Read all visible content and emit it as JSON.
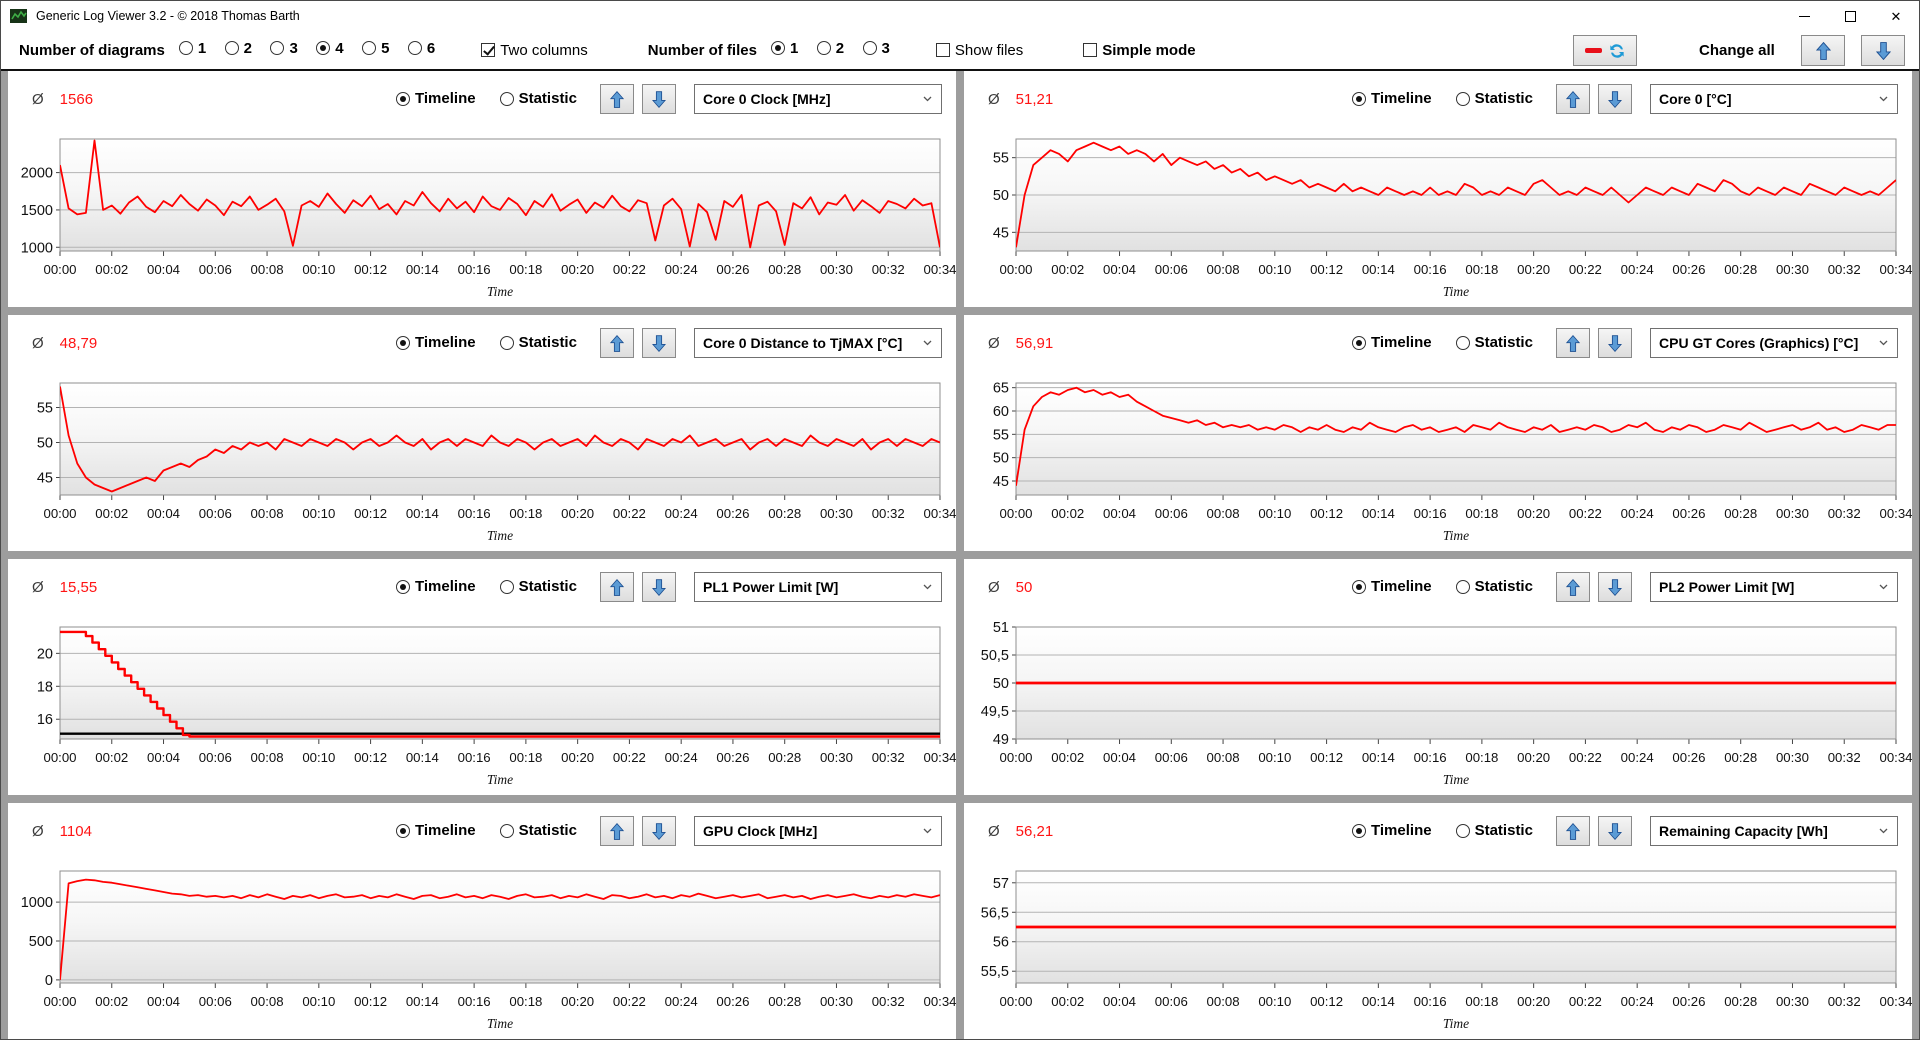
{
  "window": {
    "title": "Generic Log Viewer 3.2 - © 2018 Thomas Barth",
    "close_glyph": "✕"
  },
  "toolbar": {
    "diagrams_label": "Number of diagrams",
    "diagram_options": [
      "1",
      "2",
      "3",
      "4",
      "5",
      "6"
    ],
    "diagrams_selected": "4",
    "two_columns_label": "Two columns",
    "two_columns_checked": true,
    "files_label": "Number of files",
    "file_options": [
      "1",
      "2",
      "3"
    ],
    "files_selected": "1",
    "show_files_label": "Show files",
    "show_files_checked": false,
    "simple_mode_label": "Simple mode",
    "simple_mode_checked": false,
    "change_all_label": "Change all",
    "icons": {
      "redraw_button": [
        "minus-icon",
        "refresh-icon"
      ],
      "change_all": [
        "arrow-up-icon",
        "arrow-down-icon"
      ]
    }
  },
  "panel_common": {
    "avg_symbol": "Ø",
    "timeline_label": "Timeline",
    "statistic_label": "Statistic",
    "time_axis_label": "Time",
    "x_ticks": [
      "00:00",
      "00:02",
      "00:04",
      "00:06",
      "00:08",
      "00:10",
      "00:12",
      "00:14",
      "00:16",
      "00:18",
      "00:20",
      "00:22",
      "00:24",
      "00:26",
      "00:28",
      "00:30",
      "00:32",
      "00:34"
    ],
    "colors": {
      "series_red": "#ff0000",
      "reference_black": "#000000",
      "grid": "#b3b3b3",
      "arrow_blue": "#4a8fd8"
    }
  },
  "chart_data": [
    {
      "type": "line",
      "avg": "1566",
      "metric": "Core 0 Clock [MHz]",
      "mode": "Timeline",
      "xlabel": "Time",
      "x_range_minutes": [
        0,
        34
      ],
      "ylim": [
        950,
        2450
      ],
      "yticks": [
        [
          1000,
          "1000"
        ],
        [
          1500,
          "1500"
        ],
        [
          2000,
          "2000"
        ]
      ],
      "series": [
        {
          "name": "Core 0 Clock",
          "color": "#ff0000",
          "width": 1.8,
          "y": [
            2100,
            1520,
            1440,
            1460,
            2430,
            1500,
            1560,
            1450,
            1600,
            1680,
            1540,
            1470,
            1620,
            1550,
            1700,
            1580,
            1490,
            1640,
            1560,
            1430,
            1610,
            1550,
            1680,
            1500,
            1570,
            1650,
            1480,
            1020,
            1560,
            1620,
            1540,
            1720,
            1580,
            1460,
            1630,
            1550,
            1690,
            1510,
            1580,
            1440,
            1620,
            1560,
            1740,
            1590,
            1480,
            1650,
            1520,
            1610,
            1470,
            1680,
            1550,
            1500,
            1660,
            1580,
            1430,
            1620,
            1540,
            1710,
            1490,
            1570,
            1640,
            1460,
            1600,
            1530,
            1690,
            1550,
            1480,
            1630,
            1590,
            1090,
            1560,
            1650,
            1510,
            1010,
            1580,
            1470,
            1100,
            1620,
            1540,
            1700,
            1000,
            1560,
            1610,
            1480,
            1030,
            1590,
            1520,
            1670,
            1440,
            1600,
            1570,
            1700,
            1490,
            1630,
            1550,
            1460,
            1620,
            1580,
            1520,
            1650,
            1560,
            1590,
            1000
          ]
        }
      ]
    },
    {
      "type": "line",
      "avg": "51,21",
      "metric": "Core 0 [°C]",
      "mode": "Timeline",
      "xlabel": "Time",
      "x_range_minutes": [
        0,
        34
      ],
      "ylim": [
        42.5,
        57.5
      ],
      "yticks": [
        [
          45,
          "45"
        ],
        [
          50,
          "50"
        ],
        [
          55,
          "55"
        ]
      ],
      "series": [
        {
          "name": "Core 0",
          "color": "#ff0000",
          "width": 1.8,
          "y": [
            43,
            50,
            54,
            55,
            56,
            55.5,
            54.5,
            56,
            56.5,
            57,
            56.5,
            56,
            56.5,
            55.5,
            56,
            55.5,
            54.5,
            55.5,
            54,
            55,
            54.5,
            54,
            54.5,
            53.5,
            54,
            53,
            53.5,
            52.5,
            53,
            52,
            52.5,
            52,
            51.5,
            52,
            51,
            51.5,
            51,
            50.5,
            51.5,
            50.5,
            51,
            50.5,
            50,
            51,
            50.5,
            50,
            50.5,
            50,
            51,
            50,
            50.5,
            50,
            51.5,
            51,
            50,
            50.5,
            50,
            51,
            50.5,
            50,
            51.5,
            52,
            51,
            50,
            50.5,
            50,
            51,
            50.5,
            50,
            51,
            50,
            49,
            50,
            51,
            50.5,
            50,
            51,
            50.5,
            50,
            51.5,
            51,
            50.5,
            52,
            51.5,
            50.5,
            50,
            51,
            50.5,
            50,
            51,
            50.5,
            50,
            51.5,
            51,
            50.5,
            50,
            51,
            50.5,
            50,
            50.5,
            50,
            51,
            52
          ]
        }
      ]
    },
    {
      "type": "line",
      "avg": "48,79",
      "metric": "Core 0 Distance to TjMAX [°C]",
      "mode": "Timeline",
      "xlabel": "Time",
      "x_range_minutes": [
        0,
        34
      ],
      "ylim": [
        42.5,
        58.5
      ],
      "yticks": [
        [
          45,
          "45"
        ],
        [
          50,
          "50"
        ],
        [
          55,
          "55"
        ]
      ],
      "series": [
        {
          "name": "Core 0 Distance to TjMAX",
          "color": "#ff0000",
          "width": 1.8,
          "y": [
            58,
            51,
            47,
            45,
            44,
            43.5,
            43,
            43.5,
            44,
            44.5,
            45,
            44.5,
            46,
            46.5,
            47,
            46.5,
            47.5,
            48,
            49,
            48.5,
            49.5,
            49,
            50,
            49.5,
            50,
            49,
            50.5,
            50,
            49.5,
            50.5,
            50,
            49.5,
            50.5,
            50,
            49,
            50,
            50.5,
            49.5,
            50,
            51,
            50,
            49.5,
            50.5,
            49,
            50,
            50.5,
            49.5,
            50.5,
            50,
            49.5,
            51,
            50,
            49.5,
            50.5,
            50,
            49,
            50,
            50.5,
            49.5,
            50,
            50.5,
            49.5,
            51,
            50,
            49.5,
            50.5,
            50,
            49,
            50.5,
            50,
            49.5,
            50.5,
            50,
            51,
            49.5,
            50,
            50.5,
            49.5,
            50,
            50.5,
            49,
            50,
            50.5,
            49.5,
            50.5,
            50,
            49.5,
            51,
            50,
            49.5,
            50.5,
            50,
            49.5,
            50.5,
            49,
            50,
            50.5,
            49.5,
            50.5,
            50,
            49.5,
            50.5,
            50
          ]
        }
      ]
    },
    {
      "type": "line",
      "avg": "56,91",
      "metric": "CPU GT Cores (Graphics) [°C]",
      "mode": "Timeline",
      "xlabel": "Time",
      "x_range_minutes": [
        0,
        34
      ],
      "ylim": [
        42,
        66
      ],
      "yticks": [
        [
          45,
          "45"
        ],
        [
          50,
          "50"
        ],
        [
          55,
          "55"
        ],
        [
          60,
          "60"
        ],
        [
          65,
          "65"
        ]
      ],
      "series": [
        {
          "name": "CPU GT Cores",
          "color": "#ff0000",
          "width": 1.8,
          "y": [
            44,
            56,
            61,
            63,
            64,
            63.5,
            64.5,
            65,
            64,
            64.5,
            63.5,
            64,
            63,
            63.5,
            62,
            61,
            60,
            59,
            58.5,
            58,
            57.5,
            58,
            57,
            57.5,
            56.5,
            57,
            56.5,
            57,
            56,
            56.5,
            56,
            57,
            56.5,
            55.5,
            56.5,
            56,
            57,
            56,
            55.5,
            56.5,
            56,
            57.5,
            56.5,
            56,
            55.5,
            56.5,
            57,
            56,
            56.5,
            55.5,
            56,
            56.5,
            55.5,
            57,
            56.5,
            56,
            57.5,
            56.5,
            56,
            55.5,
            56.5,
            56,
            57,
            55.5,
            56,
            56.5,
            56,
            57,
            56.5,
            55.5,
            56,
            57,
            56.5,
            57.5,
            56,
            55.5,
            56.5,
            56,
            57,
            56.5,
            55.5,
            56,
            57,
            56.5,
            56,
            57.5,
            56.5,
            55.5,
            56,
            56.5,
            57,
            56,
            56.5,
            57.5,
            56,
            56.5,
            55.5,
            56,
            57,
            56.5,
            56,
            57,
            57
          ]
        }
      ]
    },
    {
      "type": "line",
      "avg": "15,55",
      "metric": "PL1 Power Limit [W]",
      "mode": "Timeline",
      "xlabel": "Time",
      "x_range_minutes": [
        0,
        34
      ],
      "ylim": [
        14.8,
        21.6
      ],
      "yticks": [
        [
          16,
          "16"
        ],
        [
          18,
          "18"
        ],
        [
          20,
          "20"
        ]
      ],
      "reference_line": {
        "value": 15.12,
        "color": "#000000",
        "width": 2.4
      },
      "series": [
        {
          "name": "PL1 Power Limit",
          "color": "#ff0000",
          "width": 2.4,
          "points": [
            [
              0,
              21.3
            ],
            [
              1,
              21.3
            ],
            [
              1,
              21.05
            ],
            [
              1.25,
              21.05
            ],
            [
              1.25,
              20.65
            ],
            [
              1.5,
              20.65
            ],
            [
              1.5,
              20.25
            ],
            [
              1.75,
              20.25
            ],
            [
              1.75,
              19.85
            ],
            [
              2,
              19.85
            ],
            [
              2,
              19.45
            ],
            [
              2.25,
              19.45
            ],
            [
              2.25,
              19.05
            ],
            [
              2.5,
              19.05
            ],
            [
              2.5,
              18.65
            ],
            [
              2.75,
              18.65
            ],
            [
              2.75,
              18.25
            ],
            [
              3,
              18.25
            ],
            [
              3,
              17.85
            ],
            [
              3.25,
              17.85
            ],
            [
              3.25,
              17.45
            ],
            [
              3.5,
              17.45
            ],
            [
              3.5,
              17.05
            ],
            [
              3.75,
              17.05
            ],
            [
              3.75,
              16.65
            ],
            [
              4,
              16.65
            ],
            [
              4,
              16.25
            ],
            [
              4.25,
              16.25
            ],
            [
              4.25,
              15.85
            ],
            [
              4.5,
              15.85
            ],
            [
              4.5,
              15.45
            ],
            [
              4.75,
              15.45
            ],
            [
              4.75,
              15.05
            ],
            [
              5,
              15.05
            ],
            [
              5,
              14.95
            ],
            [
              34,
              14.95
            ]
          ]
        }
      ]
    },
    {
      "type": "line",
      "avg": "50",
      "metric": "PL2 Power Limit [W]",
      "mode": "Timeline",
      "xlabel": "Time",
      "x_range_minutes": [
        0,
        34
      ],
      "ylim": [
        49,
        51
      ],
      "yticks": [
        [
          49,
          "49"
        ],
        [
          49.5,
          "49,5"
        ],
        [
          50,
          "50"
        ],
        [
          50.5,
          "50,5"
        ],
        [
          51,
          "51"
        ]
      ],
      "series": [
        {
          "name": "PL2 Power Limit",
          "color": "#ff0000",
          "width": 2.8,
          "points": [
            [
              0,
              50
            ],
            [
              34,
              50
            ]
          ]
        }
      ]
    },
    {
      "type": "line",
      "avg": "1104",
      "metric": "GPU Clock [MHz]",
      "mode": "Timeline",
      "xlabel": "Time",
      "x_range_minutes": [
        0,
        34
      ],
      "ylim": [
        -40,
        1400
      ],
      "yticks": [
        [
          0,
          "0"
        ],
        [
          500,
          "500"
        ],
        [
          1000,
          "1000"
        ]
      ],
      "series": [
        {
          "name": "GPU Clock",
          "color": "#ff0000",
          "width": 1.8,
          "y": [
            0,
            1240,
            1270,
            1290,
            1280,
            1260,
            1250,
            1230,
            1210,
            1190,
            1170,
            1150,
            1130,
            1110,
            1100,
            1080,
            1090,
            1070,
            1080,
            1060,
            1080,
            1050,
            1090,
            1060,
            1100,
            1070,
            1040,
            1080,
            1060,
            1090,
            1050,
            1080,
            1100,
            1060,
            1070,
            1090,
            1050,
            1080,
            1060,
            1100,
            1070,
            1040,
            1080,
            1090,
            1050,
            1070,
            1100,
            1060,
            1080,
            1050,
            1090,
            1070,
            1040,
            1080,
            1100,
            1060,
            1070,
            1090,
            1050,
            1080,
            1060,
            1100,
            1070,
            1040,
            1090,
            1080,
            1050,
            1070,
            1100,
            1060,
            1080,
            1050,
            1090,
            1070,
            1110,
            1080,
            1050,
            1070,
            1090,
            1060,
            1080,
            1100,
            1050,
            1070,
            1090,
            1060,
            1080,
            1040,
            1070,
            1090,
            1060,
            1080,
            1100,
            1070,
            1050,
            1080,
            1060,
            1090,
            1070,
            1100,
            1080,
            1060,
            1090
          ]
        }
      ]
    },
    {
      "type": "line",
      "avg": "56,21",
      "metric": "Remaining Capacity [Wh]",
      "mode": "Timeline",
      "xlabel": "Time",
      "x_range_minutes": [
        0,
        34
      ],
      "ylim": [
        55.3,
        57.2
      ],
      "yticks": [
        [
          55.5,
          "55,5"
        ],
        [
          56,
          "56"
        ],
        [
          56.5,
          "56,5"
        ],
        [
          57,
          "57"
        ]
      ],
      "series": [
        {
          "name": "Remaining Capacity",
          "color": "#ff0000",
          "width": 2.8,
          "points": [
            [
              0,
              56.25
            ],
            [
              34,
              56.25
            ]
          ]
        }
      ]
    }
  ]
}
